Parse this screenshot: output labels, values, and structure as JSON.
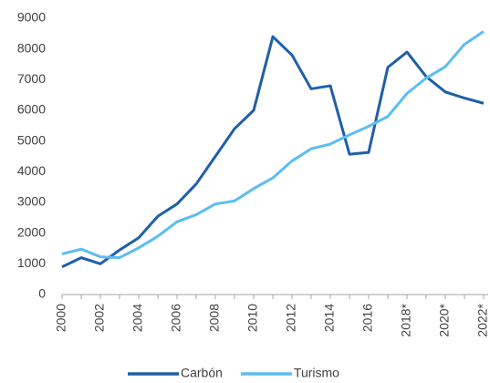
{
  "chart_data": {
    "type": "line",
    "categories": [
      "2000",
      null,
      "2002",
      null,
      "2004",
      null,
      "2006",
      null,
      "2008",
      null,
      "2010",
      null,
      "2012",
      null,
      "2014",
      null,
      "2016",
      null,
      "2018*",
      null,
      "2020*",
      null,
      "2022*"
    ],
    "series": [
      {
        "name": "Carbón",
        "color": "#1f5fa8",
        "values": [
          900,
          1200,
          1000,
          1450,
          1850,
          2550,
          2950,
          3600,
          4500,
          5400,
          6000,
          8400,
          7800,
          6700,
          6800,
          4570,
          4630,
          7400,
          7900,
          7100,
          6600,
          6400,
          6230
        ]
      },
      {
        "name": "Turismo",
        "color": "#5bbdf2",
        "values": [
          1320,
          1480,
          1230,
          1200,
          1520,
          1900,
          2370,
          2600,
          2950,
          3050,
          3450,
          3800,
          4350,
          4750,
          4900,
          5200,
          5480,
          5800,
          6550,
          7050,
          7420,
          8150,
          8570
        ]
      }
    ],
    "ylim": [
      0,
      9000
    ],
    "yticks": [
      0,
      1000,
      2000,
      3000,
      4000,
      5000,
      6000,
      7000,
      8000,
      9000
    ],
    "grid": false,
    "legend": "bottom"
  }
}
